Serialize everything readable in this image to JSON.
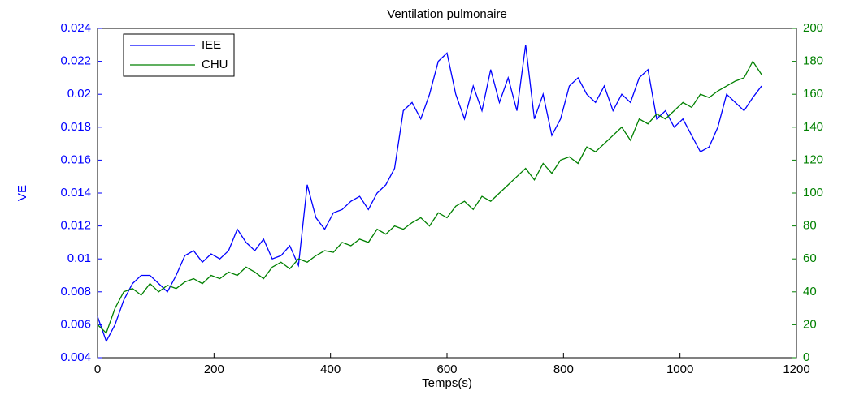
{
  "chart_data": {
    "type": "line",
    "title": "Ventilation pulmonaire",
    "x_label": "Temps(s)",
    "y_label": "VE",
    "x": [
      0,
      15,
      30,
      45,
      60,
      75,
      90,
      105,
      120,
      135,
      150,
      165,
      180,
      195,
      210,
      225,
      240,
      255,
      270,
      285,
      300,
      315,
      330,
      345,
      360,
      375,
      390,
      405,
      420,
      435,
      450,
      465,
      480,
      495,
      510,
      525,
      540,
      555,
      570,
      585,
      600,
      615,
      630,
      645,
      660,
      675,
      690,
      705,
      720,
      735,
      750,
      765,
      780,
      795,
      810,
      825,
      840,
      855,
      870,
      885,
      900,
      915,
      930,
      945,
      960,
      975,
      990,
      1005,
      1020,
      1035,
      1050,
      1065,
      1080,
      1095,
      1110,
      1125,
      1140
    ],
    "series": [
      {
        "name": "IEE",
        "color": "#0000ff",
        "values": [
          0.0065,
          0.005,
          0.006,
          0.0075,
          0.0085,
          0.009,
          0.009,
          0.0085,
          0.008,
          0.009,
          0.0102,
          0.0105,
          0.0098,
          0.0103,
          0.01,
          0.0105,
          0.0118,
          0.011,
          0.0105,
          0.0112,
          0.01,
          0.0102,
          0.0108,
          0.0096,
          0.0145,
          0.0125,
          0.0118,
          0.0128,
          0.013,
          0.0135,
          0.0138,
          0.013,
          0.014,
          0.0145,
          0.0155,
          0.019,
          0.0195,
          0.0185,
          0.02,
          0.022,
          0.0225,
          0.02,
          0.0185,
          0.0205,
          0.019,
          0.0215,
          0.0195,
          0.021,
          0.019,
          0.023,
          0.0185,
          0.02,
          0.0175,
          0.0185,
          0.0205,
          0.021,
          0.02,
          0.0195,
          0.0205,
          0.019,
          0.02,
          0.0195,
          0.021,
          0.0215,
          0.0185,
          0.019,
          0.018,
          0.0185,
          0.0175,
          0.0165,
          0.0168,
          0.018,
          0.02,
          0.0195,
          0.019,
          0.0198,
          0.0205
        ]
      },
      {
        "name": "CHU",
        "color": "#008000",
        "axis": "y2",
        "values": [
          20,
          15,
          30,
          40,
          42,
          38,
          45,
          40,
          44,
          42,
          46,
          48,
          45,
          50,
          48,
          52,
          50,
          55,
          52,
          48,
          55,
          58,
          54,
          60,
          58,
          62,
          65,
          64,
          70,
          68,
          72,
          70,
          78,
          75,
          80,
          78,
          82,
          85,
          80,
          88,
          85,
          92,
          95,
          90,
          98,
          95,
          100,
          105,
          110,
          115,
          108,
          118,
          112,
          120,
          122,
          118,
          128,
          125,
          130,
          135,
          140,
          132,
          145,
          142,
          148,
          145,
          150,
          155,
          152,
          160,
          158,
          162,
          165,
          168,
          170,
          180,
          172
        ]
      }
    ],
    "xlim": [
      0,
      1200
    ],
    "xticks": [
      0,
      200,
      400,
      600,
      800,
      1000,
      1200
    ],
    "ylim": [
      0.004,
      0.024
    ],
    "yticks": [
      0.004,
      0.006,
      0.008,
      0.01,
      0.012,
      0.014,
      0.016,
      0.018,
      0.02,
      0.022,
      0.024
    ],
    "y2lim": [
      0,
      200
    ],
    "y2ticks": [
      0,
      20,
      40,
      60,
      80,
      100,
      120,
      140,
      160,
      180,
      200
    ],
    "legend": "upper left"
  }
}
